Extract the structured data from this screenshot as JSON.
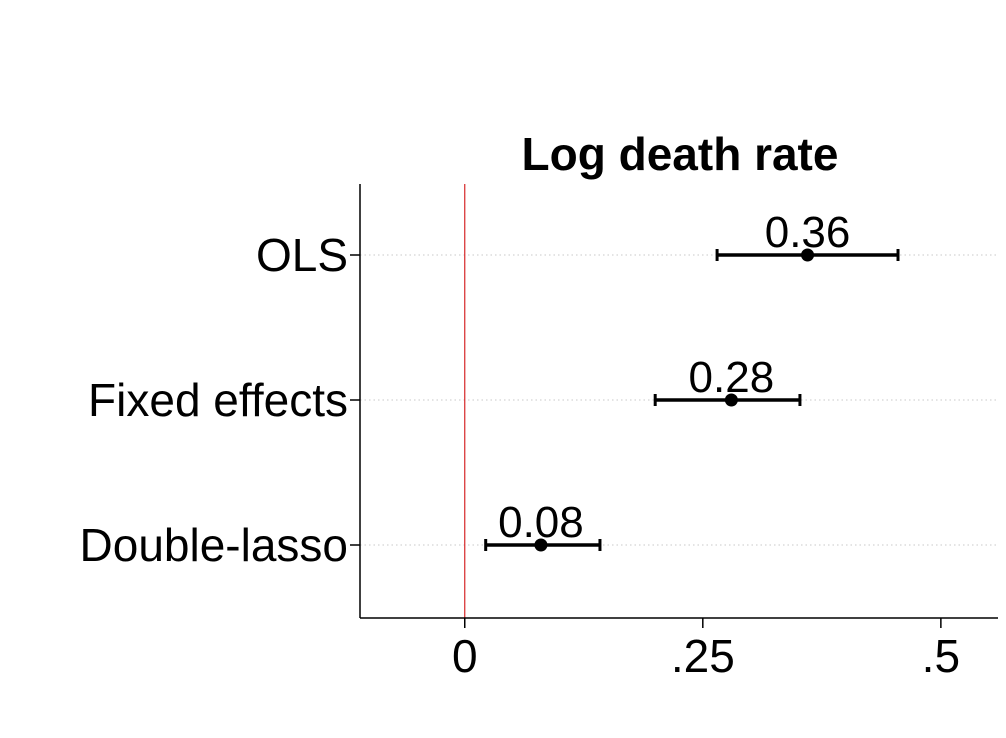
{
  "chart_data": {
    "type": "scatter",
    "title": "Log death rate",
    "xlabel": "",
    "ylabel": "",
    "xlim": [
      -0.11,
      0.56
    ],
    "x_ticks": [
      0,
      0.25,
      0.5
    ],
    "x_tick_labels": [
      "0",
      ".25",
      ".5"
    ],
    "reference_line": {
      "x": 0,
      "color": "#d62728"
    },
    "grid": "horizontal dotted at each category",
    "categories": [
      "OLS",
      "Fixed effects",
      "Double-lasso"
    ],
    "estimates": [
      0.36,
      0.28,
      0.08
    ],
    "estimate_labels": [
      "0.36",
      "0.28",
      "0.08"
    ],
    "ci_low": [
      0.265,
      0.2,
      0.022
    ],
    "ci_high": [
      0.455,
      0.352,
      0.142
    ],
    "colors": {
      "marker": "#000000",
      "refline": "#d62728",
      "axis": "#000000",
      "grid": "#c8c8c8"
    }
  }
}
